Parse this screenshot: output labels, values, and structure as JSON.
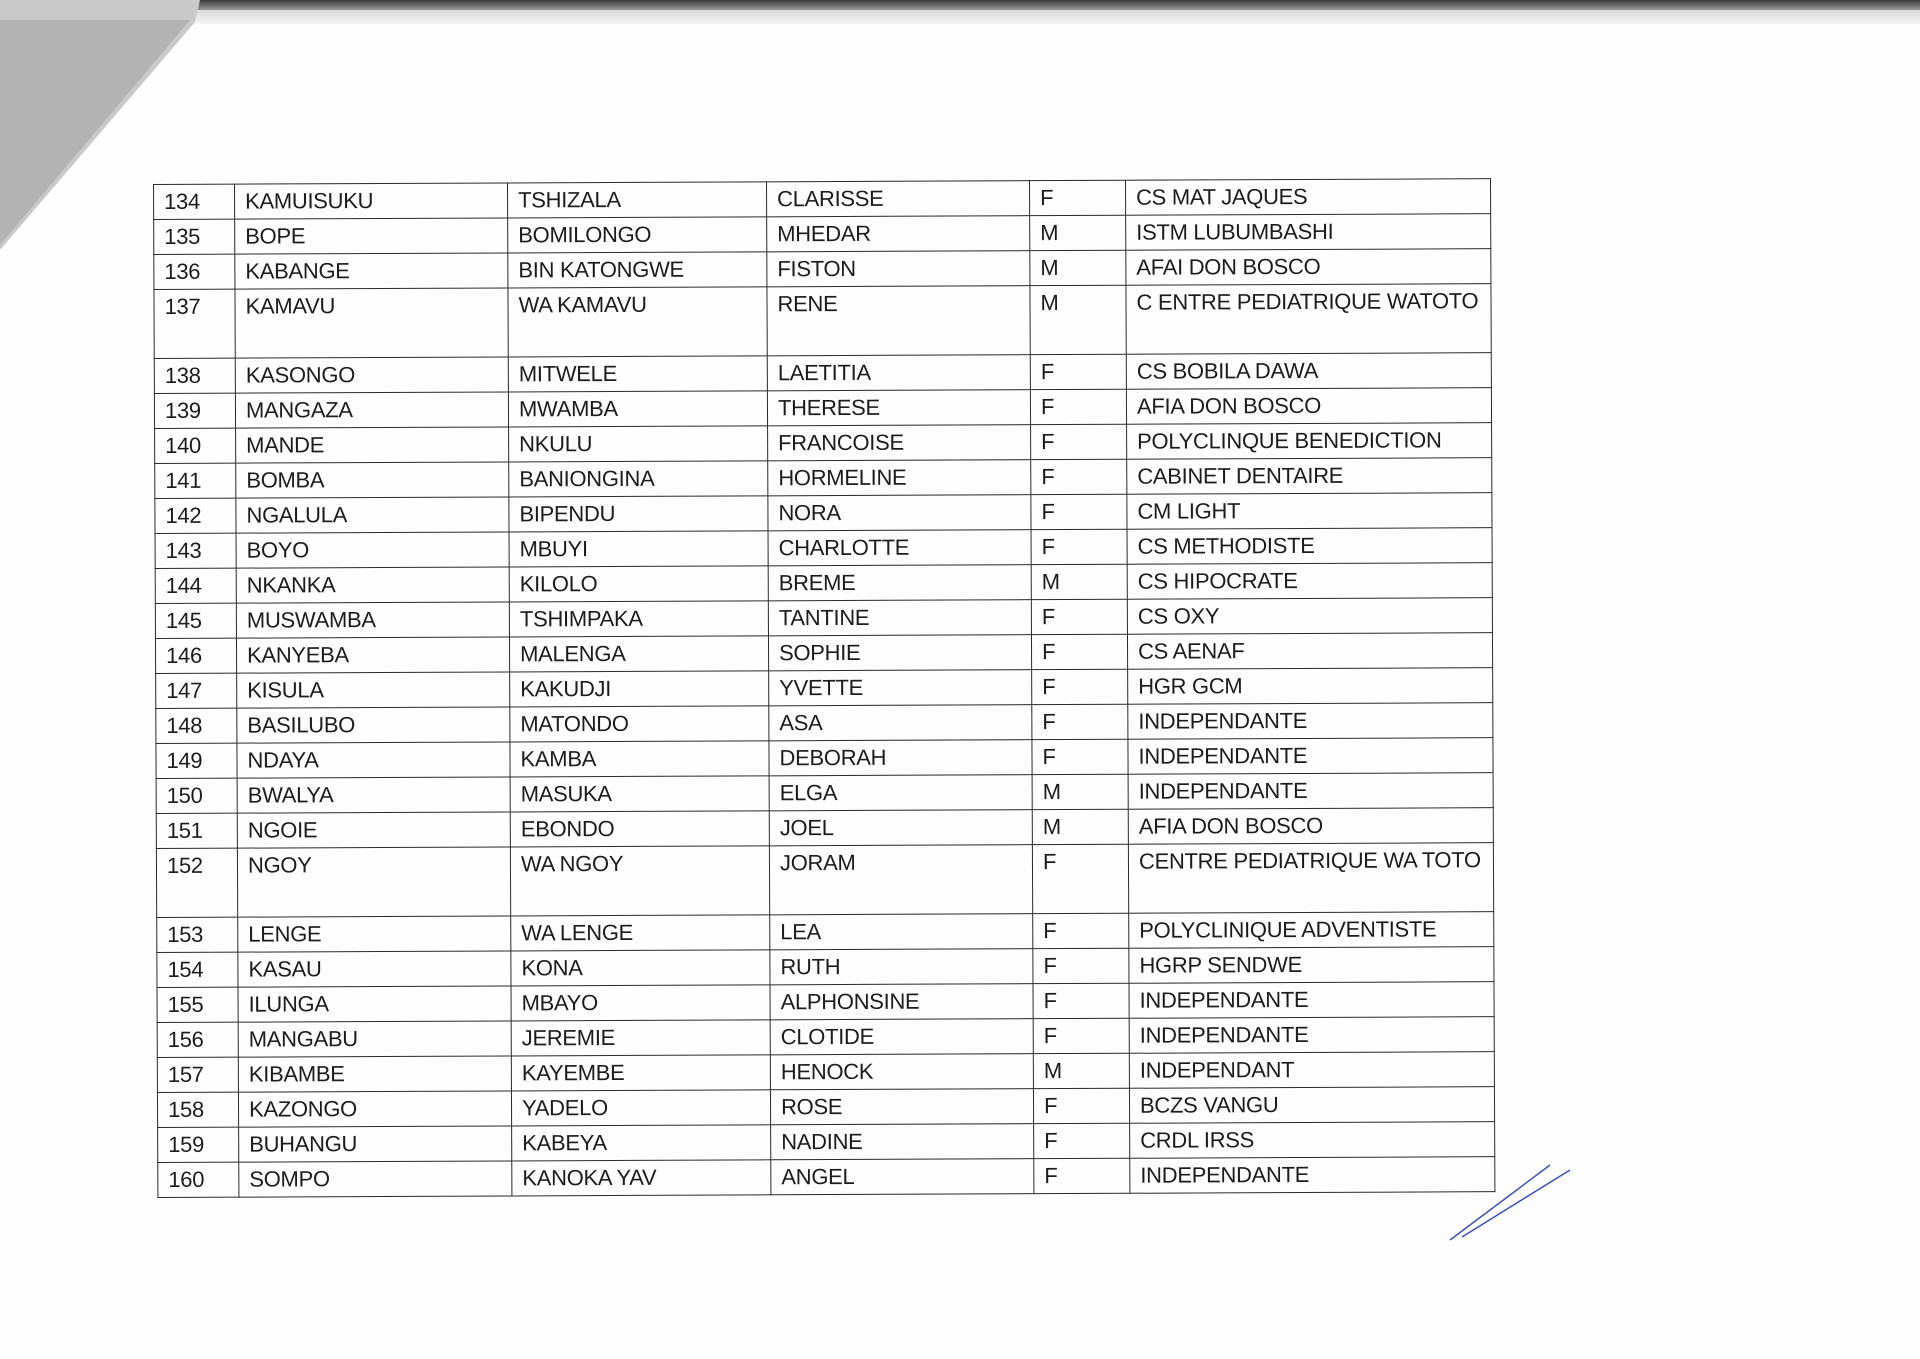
{
  "table": {
    "rows": [
      [
        "134",
        "KAMUISUKU",
        "TSHIZALA",
        "CLARISSE",
        "F",
        "CS MAT JAQUES"
      ],
      [
        "135",
        "BOPE",
        "BOMILONGO",
        "MHEDAR",
        "M",
        "ISTM LUBUMBASHI"
      ],
      [
        "136",
        "KABANGE",
        "BIN KATONGWE",
        "FISTON",
        "M",
        "AFAI DON BOSCO"
      ],
      [
        "137",
        "KAMAVU",
        "WA KAMAVU",
        "RENE",
        "M",
        "C ENTRE PEDIATRIQUE WATOTO"
      ],
      [
        "138",
        "KASONGO",
        "MITWELE",
        "LAETITIA",
        "F",
        "CS BOBILA DAWA"
      ],
      [
        "139",
        "MANGAZA",
        "MWAMBA",
        "THERESE",
        "F",
        "AFIA DON BOSCO"
      ],
      [
        "140",
        "MANDE",
        "NKULU",
        "FRANCOISE",
        "F",
        "POLYCLINQUE BENEDICTION"
      ],
      [
        "141",
        "BOMBA",
        "BANIONGINA",
        "HORMELINE",
        "F",
        "CABINET DENTAIRE"
      ],
      [
        "142",
        "NGALULA",
        "BIPENDU",
        "NORA",
        "F",
        "CM LIGHT"
      ],
      [
        "143",
        "BOYO",
        "MBUYI",
        "CHARLOTTE",
        "F",
        "CS METHODISTE"
      ],
      [
        "144",
        "NKANKA",
        "KILOLO",
        "BREME",
        "M",
        "CS HIPOCRATE"
      ],
      [
        "145",
        "MUSWAMBA",
        "TSHIMPAKA",
        "TANTINE",
        "F",
        "CS OXY"
      ],
      [
        "146",
        "KANYEBA",
        "MALENGA",
        "SOPHIE",
        "F",
        "CS AENAF"
      ],
      [
        "147",
        "KISULA",
        "KAKUDJI",
        "YVETTE",
        "F",
        "HGR GCM"
      ],
      [
        "148",
        "BASILUBO",
        "MATONDO",
        "ASA",
        "F",
        "INDEPENDANTE"
      ],
      [
        "149",
        "NDAYA",
        "KAMBA",
        "DEBORAH",
        "F",
        "INDEPENDANTE"
      ],
      [
        "150",
        "BWALYA",
        "MASUKA",
        "ELGA",
        "M",
        "INDEPENDANTE"
      ],
      [
        "151",
        "NGOIE",
        "EBONDO",
        "JOEL",
        "M",
        "AFIA DON BOSCO"
      ],
      [
        "152",
        "NGOY",
        "WA NGOY",
        "JORAM",
        "F",
        "CENTRE PEDIATRIQUE WA TOTO"
      ],
      [
        "153",
        "LENGE",
        "WA LENGE",
        "LEA",
        "F",
        "POLYCLINIQUE ADVENTISTE"
      ],
      [
        "154",
        "KASAU",
        "KONA",
        "RUTH",
        "F",
        "HGRP SENDWE"
      ],
      [
        "155",
        "ILUNGA",
        "MBAYO",
        "ALPHONSINE",
        "F",
        "INDEPENDANTE"
      ],
      [
        "156",
        "MANGABU",
        "JEREMIE",
        "CLOTIDE",
        "F",
        "INDEPENDANTE"
      ],
      [
        "157",
        "KIBAMBE",
        "KAYEMBE",
        "HENOCK",
        "M",
        "INDEPENDANT"
      ],
      [
        "158",
        "KAZONGO",
        "YADELO",
        "ROSE",
        "F",
        "BCZS VANGU"
      ],
      [
        "159",
        "BUHANGU",
        "KABEYA",
        "NADINE",
        "F",
        "CRDL IRSS"
      ],
      [
        "160",
        "SOMPO",
        "KANOKA YAV",
        "ANGEL",
        "F",
        "INDEPENDANTE"
      ]
    ]
  },
  "colors": {
    "ink": "#1c1c1c",
    "paper": "#fdfdfd",
    "pen": "#3b4fb8"
  }
}
